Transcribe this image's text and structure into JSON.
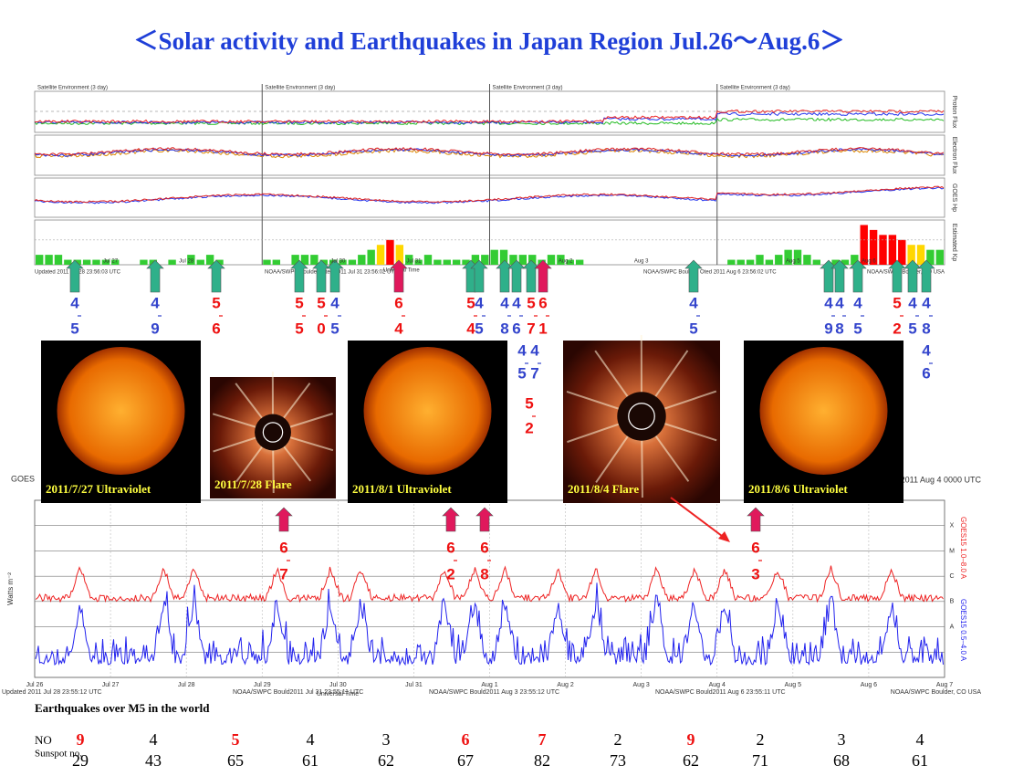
{
  "title": "＜Solar activity and Earthquakes  in Japan Region Jul.26～Aug.6＞",
  "top_panel": {
    "panel_labels": [
      "Proton Flux",
      "Electron Flux",
      "GOES Hp",
      "Estimated Kp"
    ],
    "headers": [
      "Satellite Environment (3 day)",
      "Satellite Environment (3 day)",
      "Satellite Environment (3 day)",
      "Satellite Environment (3 day)"
    ],
    "footers": [
      "Updated 2011 Jul 28 23:56:03 UTC",
      "NOAA/SWPC Boulder, Oted 2011 Jul 31 23:56:02 UTC",
      "NOAA/SWPC Boulder, Oted 2011 Aug  6 23:56:02 UTC",
      "NOAA/SWPC Boulder, CO USA"
    ],
    "axis_label": "Universal Time",
    "kp": {
      "ylim": [
        0,
        9
      ],
      "colors": {
        "low": "#33cc33",
        "mid": "#ffd700",
        "high": "#ff0000"
      },
      "values": [
        2,
        2,
        2,
        1,
        1,
        1,
        1,
        1,
        1,
        0,
        0,
        1,
        1,
        0,
        1,
        0,
        2,
        1,
        2,
        1,
        0,
        0,
        0,
        0,
        1,
        1,
        0,
        2,
        2,
        2,
        1,
        1,
        1,
        1,
        2,
        3,
        4,
        5,
        4,
        2,
        1,
        2,
        1,
        1,
        1,
        1,
        2,
        2,
        3,
        3,
        2,
        2,
        2,
        1,
        2,
        2,
        1,
        1,
        0,
        0,
        0,
        0,
        0,
        0,
        0,
        0,
        0,
        0,
        0,
        0,
        0,
        0,
        0,
        1,
        1,
        1,
        2,
        1,
        2,
        3,
        3,
        2,
        1,
        0,
        1,
        1,
        2,
        8,
        7,
        6,
        6,
        5,
        4,
        4,
        3,
        3
      ]
    }
  },
  "day_labels": [
    "Jul 26",
    "Jul 27",
    "Jul 28",
    "Jul 29",
    "Jul 30",
    "Jul 31",
    "Aug 1",
    "Aug 2",
    "Aug 3",
    "Aug 4",
    "Aug 5",
    "Aug 6",
    "Aug 7"
  ],
  "quakes": [
    {
      "mag": [
        "4",
        "5"
      ],
      "color": "#3344cc"
    },
    {
      "mag": [
        "4",
        "9"
      ],
      "color": "#3344cc"
    },
    {
      "mag": [
        "5",
        "6"
      ],
      "color": "#ee1111"
    },
    {
      "mag": [
        "5",
        "5"
      ],
      "color": "#ee1111"
    },
    {
      "mag": [
        "5",
        "0"
      ],
      "color": "#ee1111"
    },
    {
      "mag": [
        "4",
        "5"
      ],
      "color": "#3344cc"
    },
    {
      "mag": [
        "6",
        "4"
      ],
      "color": "#ee1111"
    },
    {
      "mag": [
        "5",
        "4"
      ],
      "color": "#ee1111"
    },
    {
      "mag": [
        "4",
        "5"
      ],
      "color": "#3344cc"
    },
    {
      "mag": [
        "4",
        "8"
      ],
      "color": "#3344cc"
    },
    {
      "mag": [
        "4",
        "6"
      ],
      "color": "#3344cc"
    },
    {
      "mag": [
        "5",
        "7"
      ],
      "color": "#ee1111"
    },
    {
      "mag": [
        "6",
        "1"
      ],
      "color": "#ee1111"
    },
    {
      "mag": [
        "4",
        "5"
      ],
      "color": "#3344cc"
    },
    {
      "mag": [
        "4",
        "7"
      ],
      "color": "#3344cc"
    },
    {
      "mag": [
        "5",
        "2"
      ],
      "color": "#ee1111"
    },
    {
      "mag": [
        "4",
        "5"
      ],
      "color": "#3344cc"
    },
    {
      "mag": [
        "4",
        "9"
      ],
      "color": "#3344cc"
    },
    {
      "mag": [
        "4",
        "8"
      ],
      "color": "#3344cc"
    },
    {
      "mag": [
        "4",
        "5"
      ],
      "color": "#3344cc"
    },
    {
      "mag": [
        "5",
        "2"
      ],
      "color": "#ee1111"
    },
    {
      "mag": [
        "4",
        "5"
      ],
      "color": "#3344cc"
    },
    {
      "mag": [
        "4",
        "8"
      ],
      "color": "#3344cc"
    },
    {
      "mag": [
        "4",
        "6"
      ],
      "color": "#3344cc"
    }
  ],
  "images": [
    {
      "caption": "2011/7/27  Ultraviolet"
    },
    {
      "caption": "2011/7/28  Flare"
    },
    {
      "caption": "2011/8/1  Ultraviolet"
    },
    {
      "caption": "2011/8/4  Flare"
    },
    {
      "caption": "2011/8/6  Ultraviolet"
    }
  ],
  "flares": [
    {
      "mag": [
        "6",
        "7"
      ]
    },
    {
      "mag": [
        "6",
        "2"
      ]
    },
    {
      "mag": [
        "6",
        "8"
      ]
    },
    {
      "mag": [
        "6",
        "3"
      ]
    }
  ],
  "xray": {
    "header": "GOES",
    "header_right": "2011 Aug 4 0000 UTC",
    "y_label": "Watts m⁻²",
    "right_labels": [
      "GOES15 1.0–8.0 A",
      "GOES15 0.5–4.0 A"
    ],
    "classes": [
      "X",
      "M",
      "C",
      "B",
      "A"
    ],
    "footers": [
      "Updated 2011 Jul 28 23:55:12 UTC",
      "NOAA/SWPC Bould2011 Jul 31 23:55:11 UTC",
      "NOAA/SWPC Bould2011 Aug  3 23:55:12 UTC",
      "NOAA/SWPC Bould2011 Aug  6 23:55:11 UTC",
      "NOAA/SWPC Boulder, CO USA"
    ],
    "axis_label": "Universal Time"
  },
  "table": {
    "heading": "Earthquakes  over  M5  in the world",
    "rows": [
      {
        "label": "NO",
        "values": [
          9,
          4,
          5,
          4,
          3,
          6,
          7,
          2,
          9,
          2,
          3,
          4
        ],
        "colors": [
          "#ee1111",
          "#000",
          "#ee1111",
          "#000",
          "#000",
          "#ee1111",
          "#ee1111",
          "#000",
          "#ee1111",
          "#000",
          "#000",
          "#000"
        ]
      },
      {
        "label": "Sunspot no.",
        "values": [
          29,
          43,
          65,
          61,
          62,
          67,
          82,
          73,
          62,
          71,
          68,
          61
        ]
      }
    ]
  }
}
